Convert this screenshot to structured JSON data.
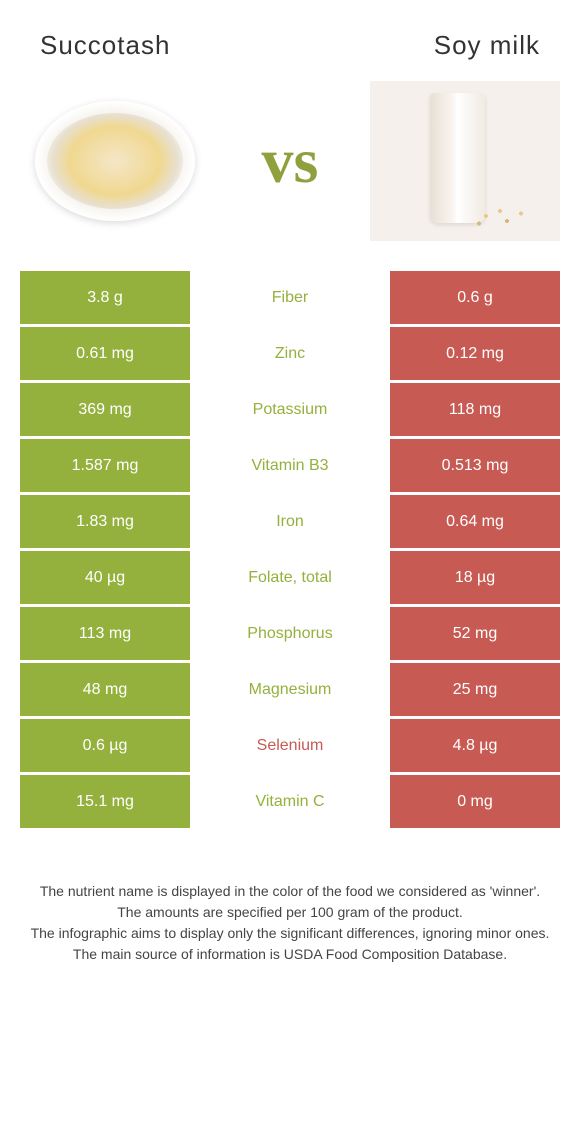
{
  "header": {
    "left_title": "Succotash",
    "right_title": "Soy milk"
  },
  "vs_label": "vs",
  "colors": {
    "succotash": "#94b13d",
    "soymilk": "#c85a54",
    "text_white": "#ffffff"
  },
  "rows": [
    {
      "left": "3.8 g",
      "label": "Fiber",
      "right": "0.6 g",
      "winner": "succotash"
    },
    {
      "left": "0.61 mg",
      "label": "Zinc",
      "right": "0.12 mg",
      "winner": "succotash"
    },
    {
      "left": "369 mg",
      "label": "Potassium",
      "right": "118 mg",
      "winner": "succotash"
    },
    {
      "left": "1.587 mg",
      "label": "Vitamin B3",
      "right": "0.513 mg",
      "winner": "succotash"
    },
    {
      "left": "1.83 mg",
      "label": "Iron",
      "right": "0.64 mg",
      "winner": "succotash"
    },
    {
      "left": "40 µg",
      "label": "Folate, total",
      "right": "18 µg",
      "winner": "succotash"
    },
    {
      "left": "113 mg",
      "label": "Phosphorus",
      "right": "52 mg",
      "winner": "succotash"
    },
    {
      "left": "48 mg",
      "label": "Magnesium",
      "right": "25 mg",
      "winner": "succotash"
    },
    {
      "left": "0.6 µg",
      "label": "Selenium",
      "right": "4.8 µg",
      "winner": "soymilk"
    },
    {
      "left": "15.1 mg",
      "label": "Vitamin C",
      "right": "0 mg",
      "winner": "succotash"
    }
  ],
  "footer": {
    "line1": "The nutrient name is displayed in the color of the food we considered as 'winner'.",
    "line2": "The amounts are specified per 100 gram of the product.",
    "line3": "The infographic aims to display only the significant differences, ignoring minor ones.",
    "line4": "The main source of information is USDA Food Composition Database."
  }
}
